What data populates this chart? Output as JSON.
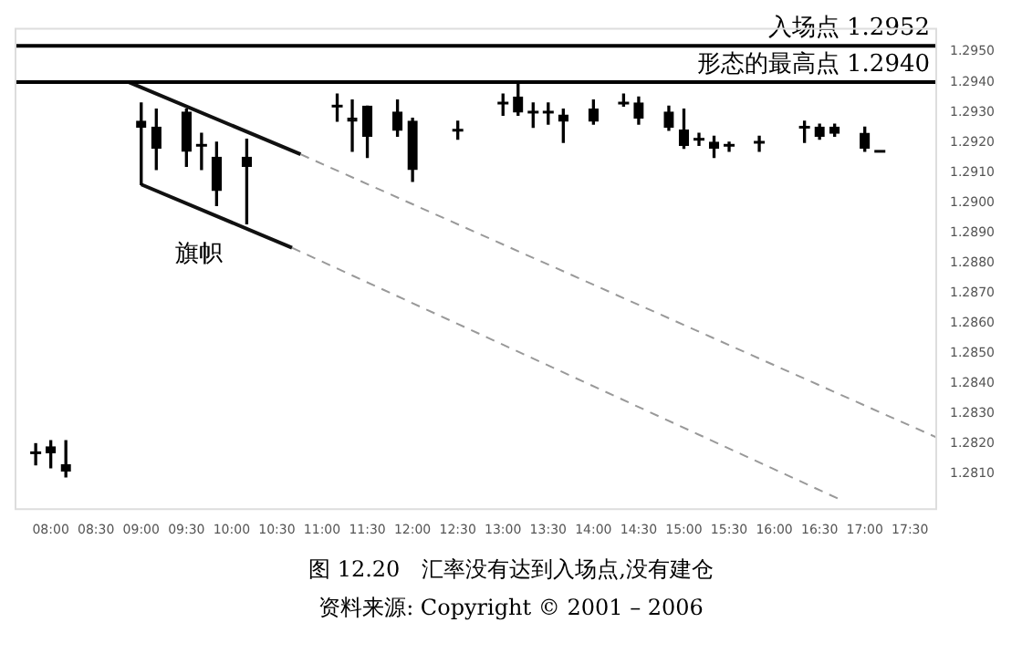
{
  "chart_data": {
    "type": "candlestick",
    "x": [
      7.8333,
      8,
      8.1667,
      9,
      9.1667,
      9.5,
      9.6667,
      9.8333,
      10.1667,
      11.1667,
      11.3333,
      11.5,
      11.8333,
      12,
      12.5,
      13,
      13.1667,
      13.3333,
      13.5,
      13.6667,
      14,
      14.3333,
      14.5,
      14.8333,
      15,
      15.1667,
      15.3333,
      15.5,
      15.8333,
      16.3333,
      16.5,
      16.6667,
      17,
      17.1667
    ],
    "ohlc": [
      [
        1.2817,
        1.282,
        1.2813,
        1.2817
      ],
      [
        1.2819,
        1.2821,
        1.2812,
        1.2817
      ],
      [
        1.2813,
        1.2821,
        1.2809,
        1.2811
      ],
      [
        1.2927,
        1.2933,
        1.2906,
        1.2925
      ],
      [
        1.2925,
        1.2931,
        1.2911,
        1.2918
      ],
      [
        1.293,
        1.2931,
        1.2912,
        1.2917
      ],
      [
        1.2919,
        1.2923,
        1.2911,
        1.2919
      ],
      [
        1.2915,
        1.292,
        1.2899,
        1.2904
      ],
      [
        1.2915,
        1.2921,
        1.2893,
        1.2912
      ],
      [
        1.2932,
        1.2936,
        1.2927,
        1.2932
      ],
      [
        1.2928,
        1.2934,
        1.2917,
        1.2927
      ],
      [
        1.2932,
        1.2932,
        1.2915,
        1.2922
      ],
      [
        1.293,
        1.2934,
        1.2922,
        1.2924
      ],
      [
        1.2927,
        1.2928,
        1.2907,
        1.2911
      ],
      [
        1.2924,
        1.2927,
        1.2921,
        1.2924
      ],
      [
        1.2933,
        1.2936,
        1.2929,
        1.2933
      ],
      [
        1.2935,
        1.294,
        1.2929,
        1.293
      ],
      [
        1.293,
        1.2933,
        1.2925,
        1.293
      ],
      [
        1.293,
        1.2933,
        1.2926,
        1.293
      ],
      [
        1.2929,
        1.2931,
        1.292,
        1.2927
      ],
      [
        1.2931,
        1.2934,
        1.2926,
        1.2927
      ],
      [
        1.2933,
        1.2936,
        1.2932,
        1.2933
      ],
      [
        1.2933,
        1.2935,
        1.2926,
        1.2928
      ],
      [
        1.293,
        1.2932,
        1.2924,
        1.2925
      ],
      [
        1.2924,
        1.2931,
        1.2918,
        1.2919
      ],
      [
        1.2921,
        1.2923,
        1.2919,
        1.2921
      ],
      [
        1.292,
        1.2922,
        1.2915,
        1.2918
      ],
      [
        1.2919,
        1.292,
        1.2917,
        1.2919
      ],
      [
        1.292,
        1.2922,
        1.2917,
        1.292
      ],
      [
        1.2925,
        1.2927,
        1.292,
        1.2925
      ],
      [
        1.2925,
        1.2926,
        1.2921,
        1.2922
      ],
      [
        1.2925,
        1.2926,
        1.2922,
        1.2923
      ],
      [
        1.2923,
        1.2925,
        1.2917,
        1.2918
      ],
      [
        1.2917,
        1.2917,
        1.2917,
        1.2917
      ]
    ],
    "series": [
      {
        "type": "line",
        "color": "#111111",
        "line_style": "solid",
        "x": [
          8.857,
          10.762
        ],
        "values": [
          1.294,
          1.2916
        ]
      },
      {
        "type": "line",
        "color": "#999999",
        "line_style": "dashed",
        "x": [
          10.762,
          17.8
        ],
        "values": [
          1.2916,
          1.2822
        ]
      },
      {
        "type": "line",
        "color": "#111111",
        "line_style": "solid",
        "x": [
          9.0,
          10.667
        ],
        "values": [
          1.2906,
          1.2885
        ]
      },
      {
        "type": "line",
        "color": "#999999",
        "line_style": "dashed",
        "x": [
          10.667,
          16.762
        ],
        "values": [
          1.2885,
          1.2801
        ]
      }
    ],
    "xlim": [
      7.6,
      17.8
    ],
    "xticks": [
      {
        "value": 8,
        "label": "08:00"
      },
      {
        "value": 8.5,
        "label": "08:30"
      },
      {
        "value": 9,
        "label": "09:00"
      },
      {
        "value": 9.5,
        "label": "09:30"
      },
      {
        "value": 10,
        "label": "10:00"
      },
      {
        "value": 10.5,
        "label": "10:30"
      },
      {
        "value": 11,
        "label": "11:00"
      },
      {
        "value": 11.5,
        "label": "11:30"
      },
      {
        "value": 12,
        "label": "12:00"
      },
      {
        "value": 12.5,
        "label": "12:30"
      },
      {
        "value": 13,
        "label": "13:00"
      },
      {
        "value": 13.5,
        "label": "13:30"
      },
      {
        "value": 14,
        "label": "14:00"
      },
      {
        "value": 14.5,
        "label": "14:30"
      },
      {
        "value": 15,
        "label": "15:00"
      },
      {
        "value": 15.5,
        "label": "15:30"
      },
      {
        "value": 16,
        "label": "16:00"
      },
      {
        "value": 16.5,
        "label": "16:30"
      },
      {
        "value": 17,
        "label": "17:00"
      },
      {
        "value": 17.5,
        "label": "17:30"
      }
    ],
    "ylim": [
      1.2798,
      1.2958
    ],
    "yticks": [
      {
        "value": 1.295,
        "label": "1.2950"
      },
      {
        "value": 1.294,
        "label": "1.2940"
      },
      {
        "value": 1.293,
        "label": "1.2930"
      },
      {
        "value": 1.292,
        "label": "1.2920"
      },
      {
        "value": 1.291,
        "label": "1.2910"
      },
      {
        "value": 1.29,
        "label": "1.2900"
      },
      {
        "value": 1.289,
        "label": "1.2890"
      },
      {
        "value": 1.288,
        "label": "1.2880"
      },
      {
        "value": 1.287,
        "label": "1.2870"
      },
      {
        "value": 1.286,
        "label": "1.2860"
      },
      {
        "value": 1.285,
        "label": "1.2850"
      },
      {
        "value": 1.284,
        "label": "1.2840"
      },
      {
        "value": 1.283,
        "label": "1.2830"
      },
      {
        "value": 1.282,
        "label": "1.2820"
      },
      {
        "value": 1.281,
        "label": "1.2810"
      }
    ],
    "ref_lines": [
      {
        "axis": "y",
        "value": 1.2952,
        "label": "入场点 1.2952",
        "color": "#000000"
      },
      {
        "axis": "y",
        "value": 1.294,
        "label": "形态的最高点 1.2940",
        "color": "#000000"
      }
    ],
    "annotations": [
      "旗帜",
      "图 12.20　汇率没有达到入场点,没有建仓",
      "资料来源: Copyright © 2001 – 2006"
    ],
    "grid": false,
    "legend": false
  }
}
